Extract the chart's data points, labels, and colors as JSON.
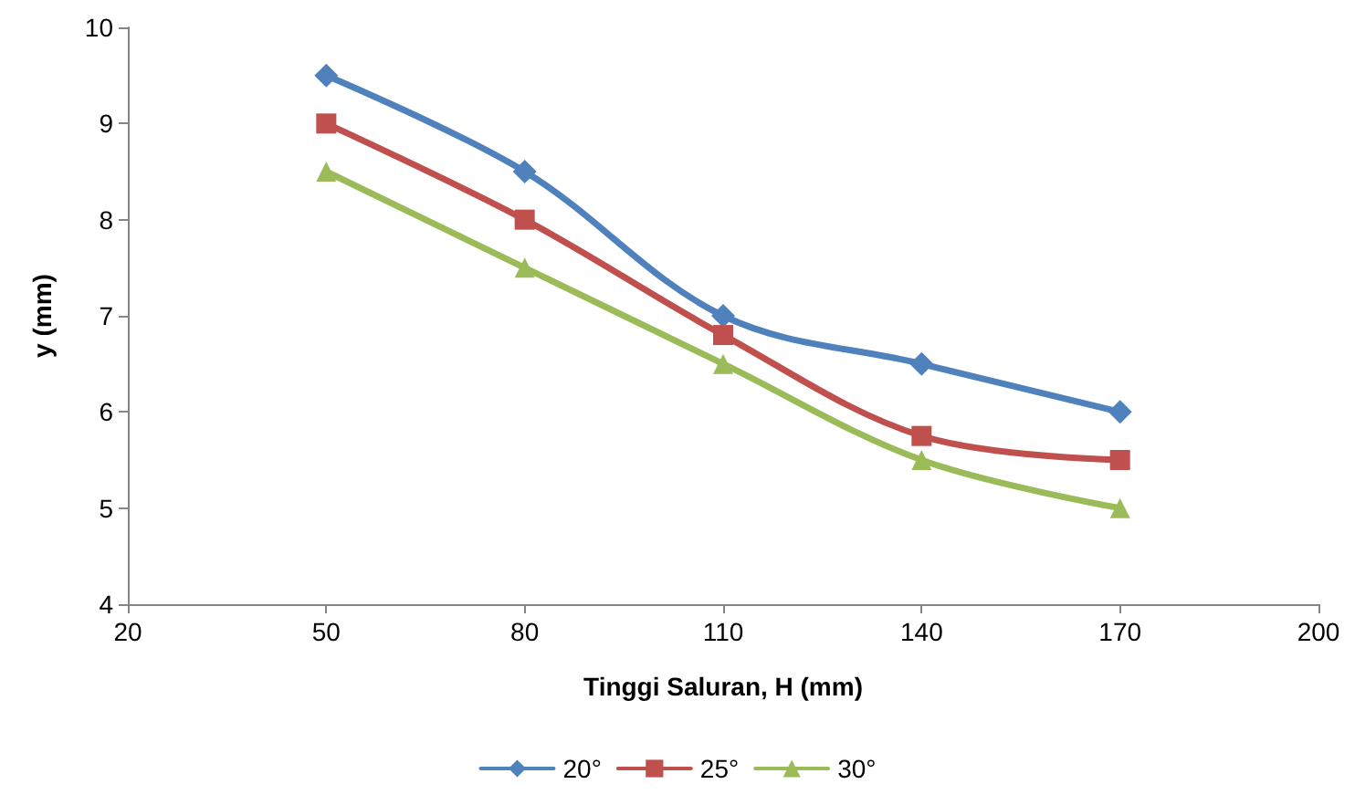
{
  "chart_data": {
    "type": "line",
    "xlabel": "Tinggi Saluran, H (mm)",
    "ylabel": "y (mm)",
    "x": [
      50,
      80,
      110,
      140,
      170
    ],
    "series": [
      {
        "name": "20°",
        "color": "#4f81bd",
        "marker": "diamond",
        "values": [
          9.5,
          8.5,
          7,
          6.5,
          6
        ]
      },
      {
        "name": "25°",
        "color": "#c0504d",
        "marker": "square",
        "values": [
          9,
          8,
          6.8,
          5.75,
          5.5
        ]
      },
      {
        "name": "30°",
        "color": "#9bbb59",
        "marker": "triangle",
        "values": [
          8.5,
          7.5,
          6.5,
          5.5,
          5
        ]
      }
    ],
    "xlim": [
      20,
      200
    ],
    "xticks": [
      20,
      50,
      80,
      110,
      140,
      170,
      200
    ],
    "ylim": [
      4,
      10
    ],
    "yticks": [
      4,
      5,
      6,
      7,
      8,
      9,
      10
    ],
    "grid": false,
    "legend": "bottom",
    "line_style": "solid"
  }
}
